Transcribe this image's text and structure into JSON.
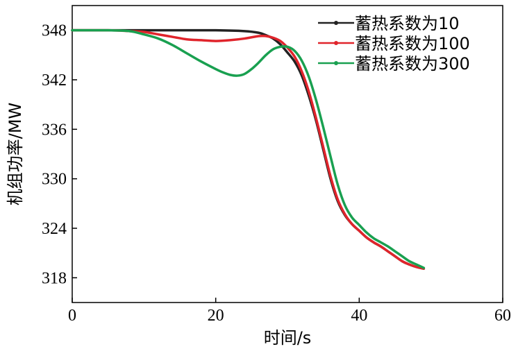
{
  "chart_data": {
    "type": "line",
    "xlabel": "时间/s",
    "ylabel": "机组功率/MW",
    "xlim": [
      0,
      60
    ],
    "ylim": [
      315,
      351
    ],
    "xticks": [
      0,
      20,
      40,
      60
    ],
    "yticks": [
      318,
      324,
      330,
      336,
      342,
      348
    ],
    "grid": false,
    "legend": "top-right",
    "series": [
      {
        "name": "蓄热系数为10",
        "color": "#222222",
        "x": [
          0,
          5,
          10,
          15,
          20,
          24,
          26,
          27,
          28,
          29,
          30,
          31,
          32,
          33,
          34,
          35,
          36,
          37,
          38,
          39,
          40,
          41,
          42,
          43,
          44,
          45,
          46,
          47,
          48,
          49
        ],
        "y": [
          348.0,
          348.0,
          348.0,
          348.0,
          348.0,
          347.9,
          347.7,
          347.4,
          347.0,
          346.3,
          345.3,
          344.2,
          342.5,
          340.0,
          337.0,
          333.5,
          330.0,
          327.3,
          325.6,
          324.5,
          323.7,
          322.9,
          322.3,
          321.8,
          321.2,
          320.6,
          320.0,
          319.6,
          319.3,
          319.1
        ]
      },
      {
        "name": "蓄热系数为100",
        "color": "#e0242b",
        "x": [
          0,
          5,
          8,
          10,
          12,
          14,
          16,
          18,
          20,
          22,
          24,
          26,
          27,
          28,
          29,
          30,
          31,
          32,
          33,
          34,
          35,
          36,
          37,
          38,
          39,
          40,
          41,
          42,
          43,
          44,
          45,
          46,
          47,
          48,
          49
        ],
        "y": [
          348.0,
          348.0,
          347.9,
          347.8,
          347.5,
          347.2,
          346.9,
          346.8,
          346.7,
          346.8,
          347.0,
          347.3,
          347.3,
          347.1,
          346.7,
          345.9,
          344.8,
          343.0,
          340.5,
          337.3,
          333.8,
          330.3,
          327.5,
          325.7,
          324.5,
          323.7,
          322.9,
          322.3,
          321.8,
          321.2,
          320.6,
          320.0,
          319.6,
          319.3,
          319.1
        ]
      },
      {
        "name": "蓄热系数为300",
        "color": "#19a050",
        "x": [
          0,
          5,
          8,
          10,
          12,
          14,
          16,
          18,
          20,
          21,
          22,
          23,
          24,
          25,
          26,
          27,
          28,
          29,
          30,
          31,
          32,
          33,
          34,
          35,
          36,
          37,
          38,
          39,
          40,
          41,
          42,
          43,
          44,
          45,
          46,
          47,
          48,
          49
        ],
        "y": [
          348.0,
          348.0,
          347.9,
          347.5,
          347.0,
          346.2,
          345.2,
          344.2,
          343.3,
          342.9,
          342.6,
          342.5,
          342.7,
          343.3,
          344.1,
          345.0,
          345.7,
          346.0,
          346.0,
          345.5,
          344.3,
          342.3,
          339.5,
          336.2,
          332.7,
          329.3,
          326.8,
          325.3,
          324.4,
          323.5,
          322.8,
          322.3,
          321.8,
          321.2,
          320.6,
          320.0,
          319.6,
          319.2
        ]
      }
    ]
  }
}
